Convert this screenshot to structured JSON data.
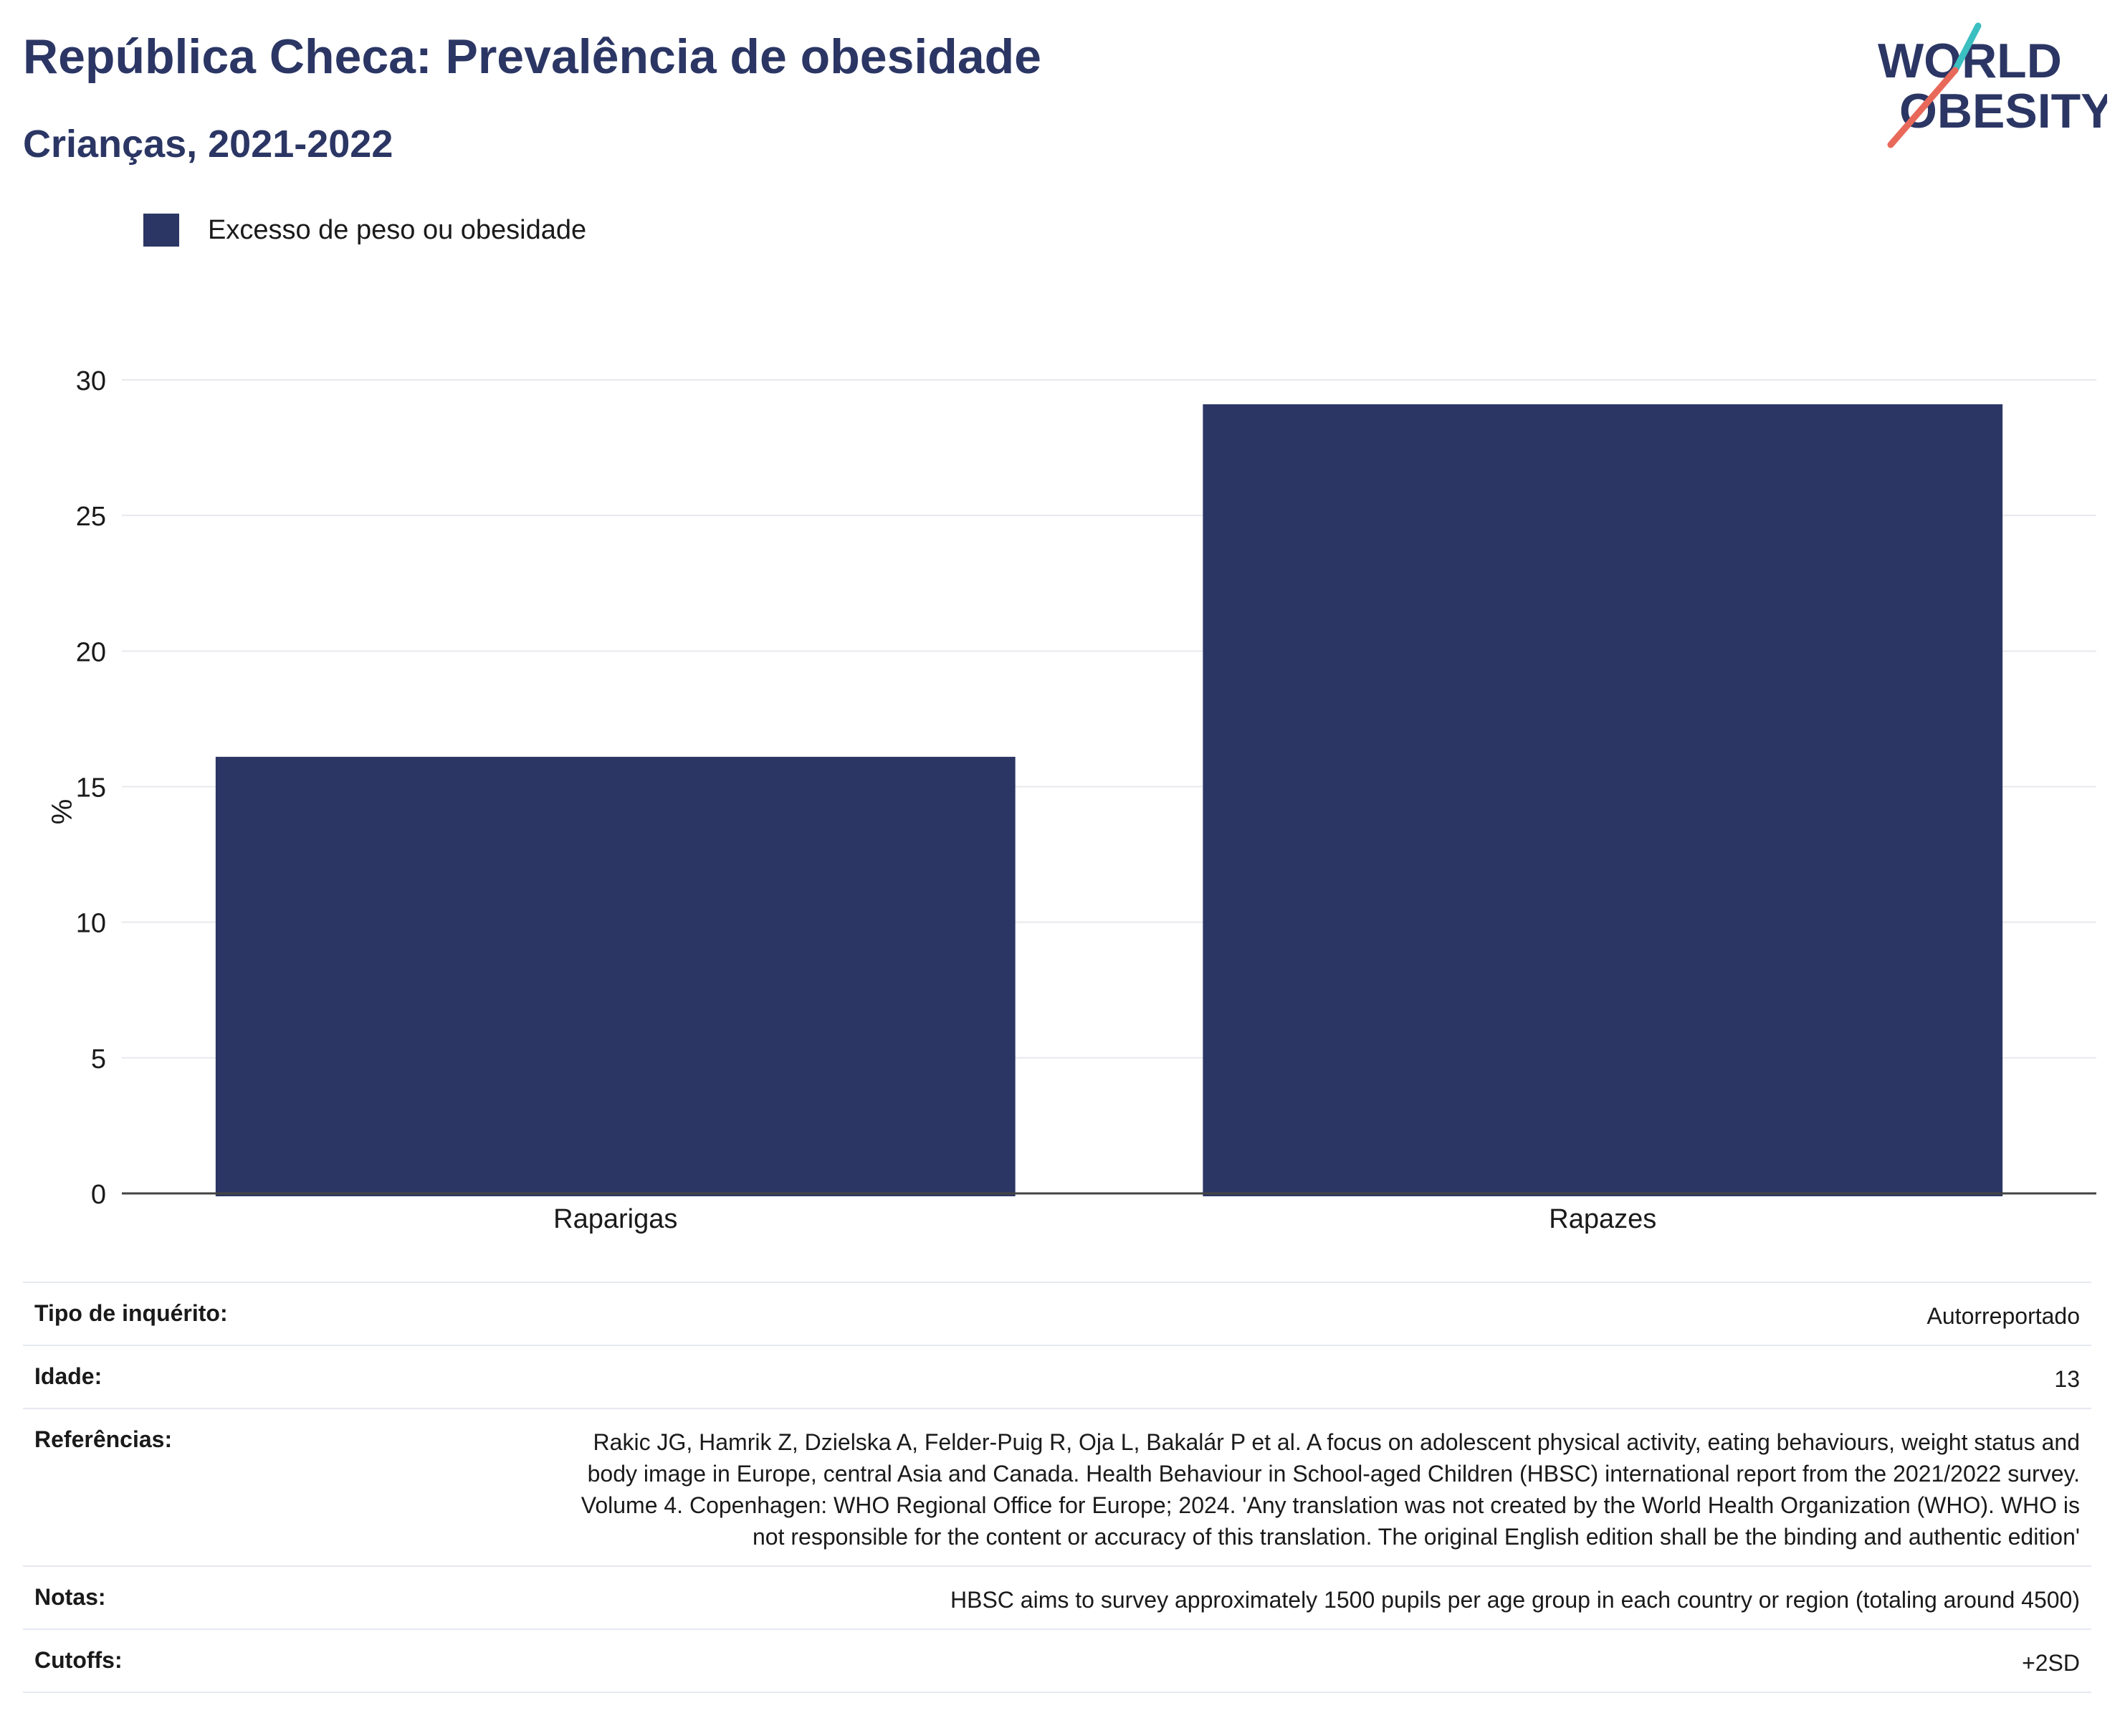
{
  "header": {
    "title": "República Checa: Prevalência de obesidade",
    "subtitle": "Crianças, 2021-2022"
  },
  "logo": {
    "line1": "WORLD",
    "line2": "OBESITY",
    "accent_teal": "#3bbfc0",
    "accent_coral": "#e8685a"
  },
  "legend": {
    "label": "Excesso de peso ou obesidade",
    "color": "#2b3664"
  },
  "chart_data": {
    "type": "bar",
    "categories": [
      "Raparigas",
      "Rapazes"
    ],
    "series": [
      {
        "name": "Excesso de peso ou obesidade",
        "values": [
          16.1,
          29.1
        ],
        "color": "#2b3664"
      }
    ],
    "ylabel": "%",
    "xlabel": "",
    "ylim": [
      0,
      30
    ],
    "yticks": [
      0,
      5,
      10,
      15,
      20,
      25,
      30
    ],
    "grid": true,
    "legend_position": "top-left"
  },
  "info": [
    {
      "key": "Tipo de inquérito:",
      "value": "Autorreportado"
    },
    {
      "key": "Idade:",
      "value": "13"
    },
    {
      "key": "Referências:",
      "value": "Rakic JG, Hamrik Z, Dzielska A, Felder-Puig R, Oja L, Bakalár P et al. A focus on adolescent physical activity, eating behaviours, weight status and body image in Europe, central Asia and Canada. Health Behaviour in School-aged Children (HBSC) international report from the 2021/2022 survey. Volume 4. Copenhagen: WHO Regional Office for Europe; 2024. 'Any translation was not created by the World Health Organization (WHO). WHO is not responsible for the content or accuracy of this translation. The original English edition shall be the binding and authentic edition'"
    },
    {
      "key": "Notas:",
      "value": "HBSC aims to survey approximately 1500 pupils per age group in each country or region (totaling around 4500)"
    },
    {
      "key": "Cutoffs:",
      "value": "+2SD"
    }
  ]
}
